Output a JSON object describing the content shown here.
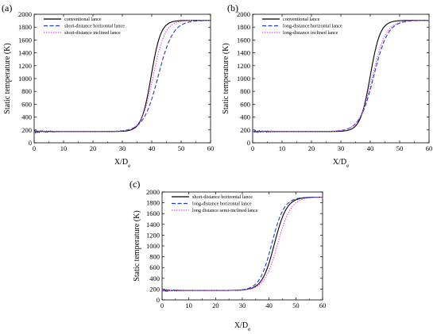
{
  "chart_data": [
    {
      "type": "line",
      "panel_label": "(a)",
      "xlabel": "X/D",
      "xlabel_sub": "e",
      "ylabel": "Static temperature (K)",
      "xlim": [
        0,
        60
      ],
      "ylim": [
        0,
        2000
      ],
      "xticks": [
        0,
        10,
        20,
        30,
        40,
        50,
        60
      ],
      "yticks": [
        0,
        200,
        400,
        600,
        800,
        1000,
        1200,
        1400,
        1600,
        1800,
        2000
      ],
      "legend_position": "top-left",
      "series": [
        {
          "name": "conventional lance",
          "color": "#000000",
          "dash": "solid",
          "mid": 39.8,
          "width": 1.65,
          "noise": 14
        },
        {
          "name": "short-distance horizontal lance",
          "color": "#1f3fbf",
          "dash": "dash",
          "mid": 42.2,
          "width": 2.5,
          "noise": 12
        },
        {
          "name": "short-distance inclined lance",
          "color": "#e040e0",
          "dash": "dot",
          "mid": 40.5,
          "width": 2.0,
          "noise": 10
        }
      ]
    },
    {
      "type": "line",
      "panel_label": "(b)",
      "xlabel": "X/D",
      "xlabel_sub": "e",
      "ylabel": "Static temperature (K)",
      "xlim": [
        0,
        60
      ],
      "ylim": [
        0,
        2000
      ],
      "xticks": [
        0,
        10,
        20,
        30,
        40,
        50,
        60
      ],
      "yticks": [
        0,
        200,
        400,
        600,
        800,
        1000,
        1200,
        1400,
        1600,
        1800,
        2000
      ],
      "legend_position": "top-left",
      "series": [
        {
          "name": "conventional lance",
          "color": "#000000",
          "dash": "solid",
          "mid": 40.0,
          "width": 1.7,
          "noise": 14
        },
        {
          "name": "long-distance horizontal lance",
          "color": "#1f3fbf",
          "dash": "dash",
          "mid": 41.2,
          "width": 2.4,
          "noise": 16
        },
        {
          "name": "long-distance inclined lance",
          "color": "#e040e0",
          "dash": "dot",
          "mid": 40.8,
          "width": 2.3,
          "noise": 10
        }
      ]
    },
    {
      "type": "line",
      "panel_label": "(c)",
      "xlabel": "X/D",
      "xlabel_sub": "e",
      "ylabel": "Static temperature (K)",
      "xlim": [
        0,
        60
      ],
      "ylim": [
        0,
        2000
      ],
      "xticks": [
        0,
        10,
        20,
        30,
        40,
        50,
        60
      ],
      "yticks": [
        0,
        200,
        400,
        600,
        800,
        1000,
        1200,
        1400,
        1600,
        1800,
        2000
      ],
      "legend_position": "top-left",
      "series": [
        {
          "name": "short-distance horizontal lance",
          "color": "#000000",
          "dash": "solid",
          "mid": 42.0,
          "width": 2.3,
          "noise": 14
        },
        {
          "name": "long-distance horizontal lance",
          "color": "#1f3fbf",
          "dash": "dash",
          "mid": 41.0,
          "width": 2.3,
          "noise": 16
        },
        {
          "name": "long distance semi-inclined lance",
          "color": "#e040e0",
          "dash": "dot",
          "mid": 43.2,
          "width": 2.5,
          "noise": 10
        }
      ]
    }
  ]
}
